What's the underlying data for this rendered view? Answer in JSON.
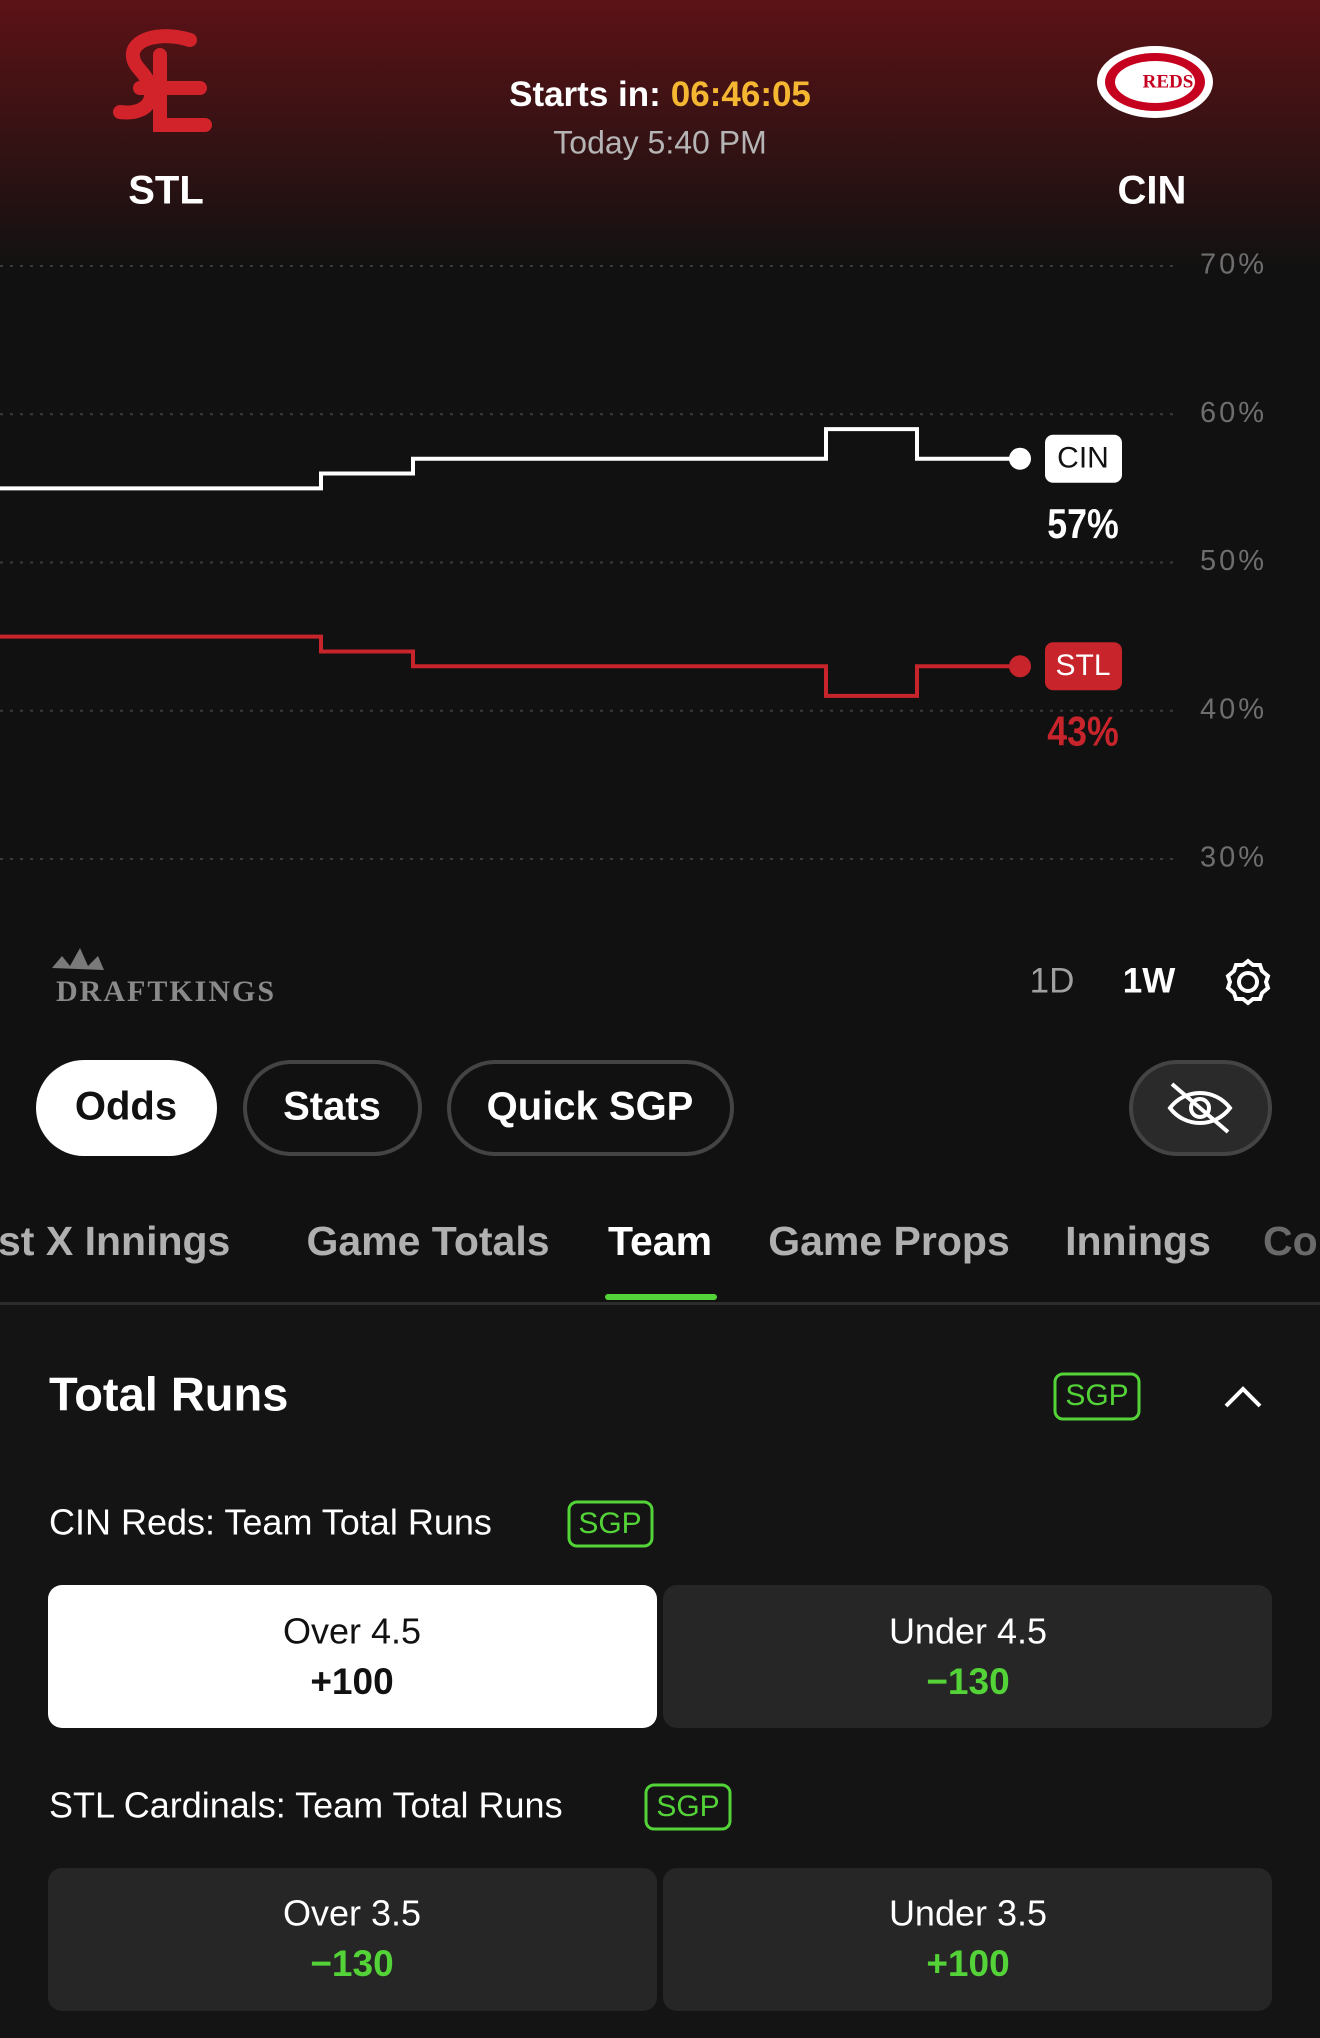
{
  "header": {
    "away_team": "STL",
    "home_team": "CIN",
    "home_logo_text": "REDS",
    "countdown_label": "Starts in:",
    "countdown": "06:46:05",
    "start_time": "Today 5:40 PM"
  },
  "chart_data": {
    "type": "line",
    "step": true,
    "categories": [
      null,
      null,
      null,
      null,
      null
    ],
    "series": [
      {
        "name": "CIN",
        "color": "#ffffff",
        "values": [
          55,
          56,
          57,
          59,
          57
        ],
        "value_labels": [
          null,
          null,
          null,
          null,
          "57%"
        ]
      },
      {
        "name": "STL",
        "color": "#c8242b",
        "values": [
          45,
          44,
          43,
          41,
          43
        ],
        "value_labels": [
          null,
          null,
          null,
          null,
          "43%"
        ]
      }
    ],
    "ylim": [
      30,
      70
    ],
    "yticks": [
      {
        "value": 30,
        "label": "30%"
      },
      {
        "value": 40,
        "label": "40%"
      },
      {
        "value": 50,
        "label": "50%"
      },
      {
        "value": 60,
        "label": "60%"
      },
      {
        "value": 70,
        "label": "70%"
      }
    ],
    "grid": true
  },
  "brand": "DRAFTKINGS",
  "range_buttons": [
    "1D",
    "1W"
  ],
  "view_tabs": [
    "Odds",
    "Stats",
    "Quick SGP"
  ],
  "market_tabs": [
    "st X Innings",
    "Game Totals",
    "Team",
    "Game Props",
    "Innings",
    "Co"
  ],
  "section": {
    "title": "Total Runs",
    "badge": "SGP",
    "markets": [
      {
        "title": "CIN Reds: Team Total Runs",
        "badge": "SGP",
        "outcomes": [
          {
            "label": "Over 4.5",
            "odds": "+100"
          },
          {
            "label": "Under 4.5",
            "odds": "−130"
          }
        ]
      },
      {
        "title": "STL Cardinals: Team Total Runs",
        "badge": "SGP",
        "outcomes": [
          {
            "label": "Over 3.5",
            "odds": "−130"
          },
          {
            "label": "Under 3.5",
            "odds": "+100"
          }
        ]
      }
    ]
  }
}
